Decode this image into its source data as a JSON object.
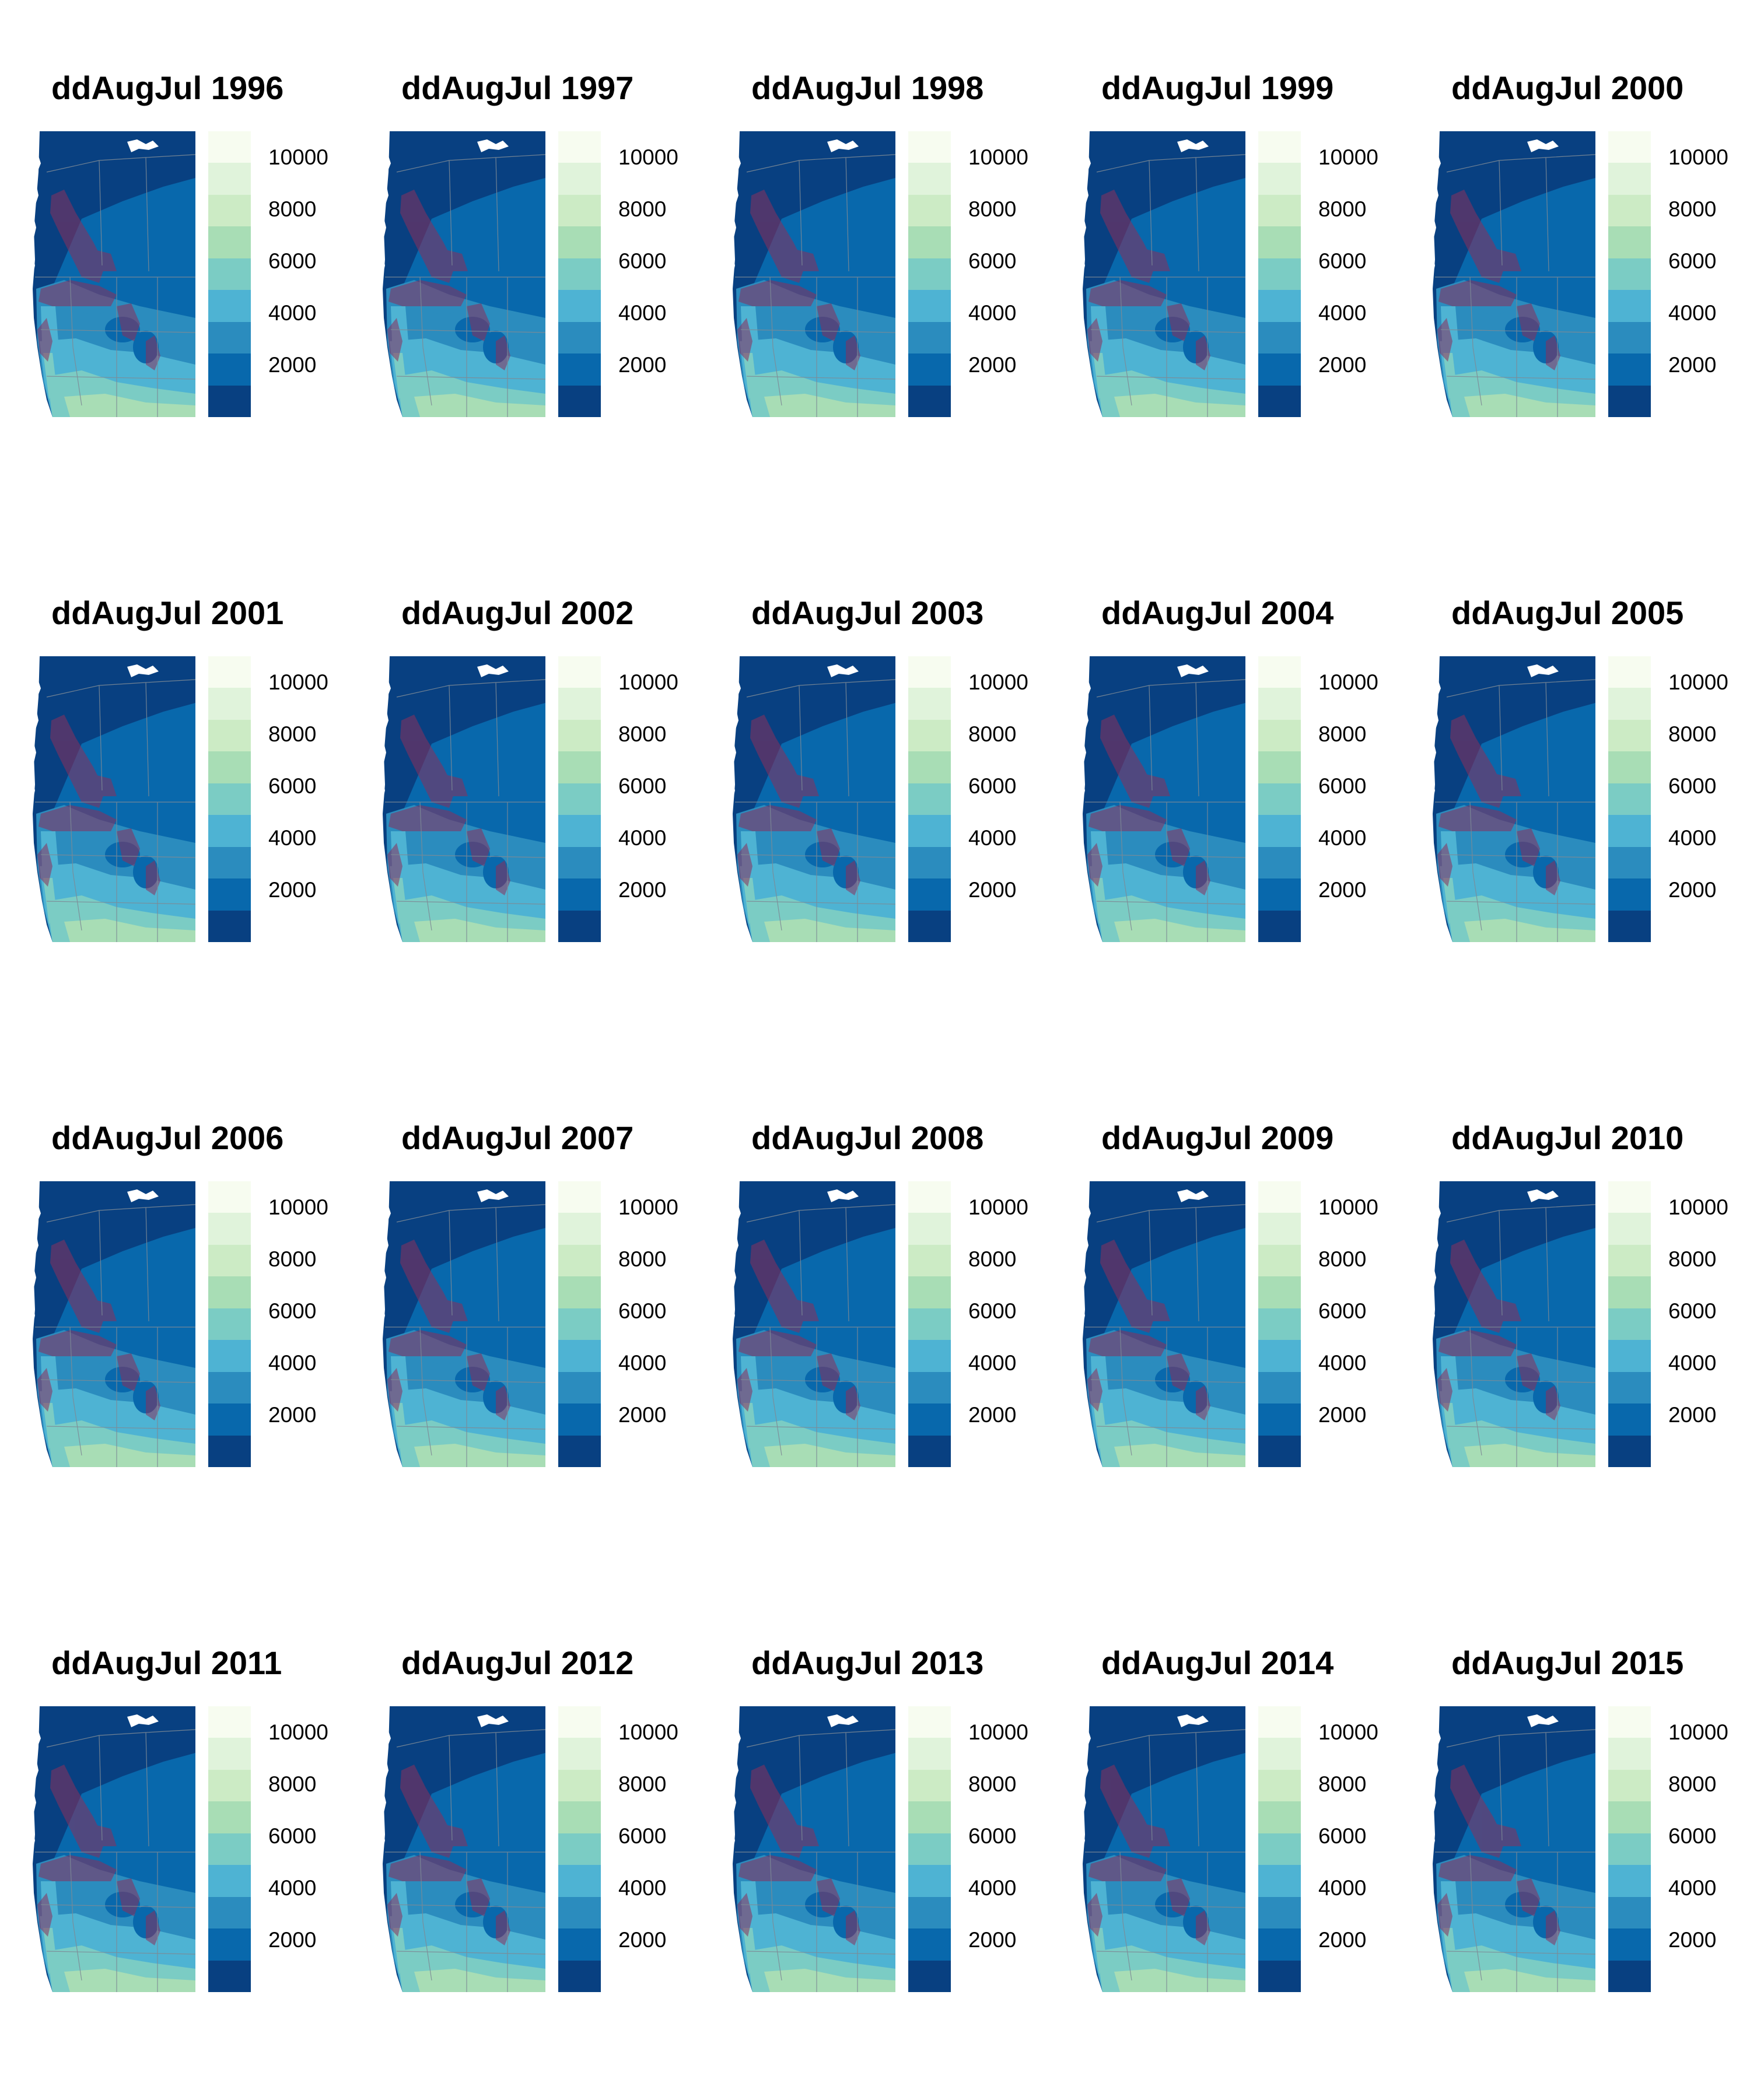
{
  "figure": {
    "panels": [
      {
        "title": "ddAugJul 1996",
        "year": 1996
      },
      {
        "title": "ddAugJul 1997",
        "year": 1997
      },
      {
        "title": "ddAugJul 1998",
        "year": 1998
      },
      {
        "title": "ddAugJul 1999",
        "year": 1999
      },
      {
        "title": "ddAugJul 2000",
        "year": 2000
      },
      {
        "title": "ddAugJul 2001",
        "year": 2001
      },
      {
        "title": "ddAugJul 2002",
        "year": 2002
      },
      {
        "title": "ddAugJul 2003",
        "year": 2003
      },
      {
        "title": "ddAugJul 2004",
        "year": 2004
      },
      {
        "title": "ddAugJul 2005",
        "year": 2005
      },
      {
        "title": "ddAugJul 2006",
        "year": 2006
      },
      {
        "title": "ddAugJul 2007",
        "year": 2007
      },
      {
        "title": "ddAugJul 2008",
        "year": 2008
      },
      {
        "title": "ddAugJul 2009",
        "year": 2009
      },
      {
        "title": "ddAugJul 2010",
        "year": 2010
      },
      {
        "title": "ddAugJul 2011",
        "year": 2011
      },
      {
        "title": "ddAugJul 2012",
        "year": 2012
      },
      {
        "title": "ddAugJul 2013",
        "year": 2013
      },
      {
        "title": "ddAugJul 2014",
        "year": 2014
      },
      {
        "title": "ddAugJul 2015",
        "year": 2015
      }
    ],
    "legend": {
      "labels": [
        "10000",
        "8000",
        "6000",
        "4000",
        "2000"
      ],
      "label_values": [
        10000,
        8000,
        6000,
        4000,
        2000
      ],
      "range": [
        0,
        11000
      ],
      "colors": [
        "#f7fcf0",
        "#e0f3db",
        "#ccebc5",
        "#a8ddb5",
        "#7bccc4",
        "#4eb3d3",
        "#2b8cbe",
        "#0868ac",
        "#084081"
      ]
    },
    "overlay_color": "#8b2f5c",
    "water_color": "#ffffff",
    "border_color": "#7d8a96"
  }
}
